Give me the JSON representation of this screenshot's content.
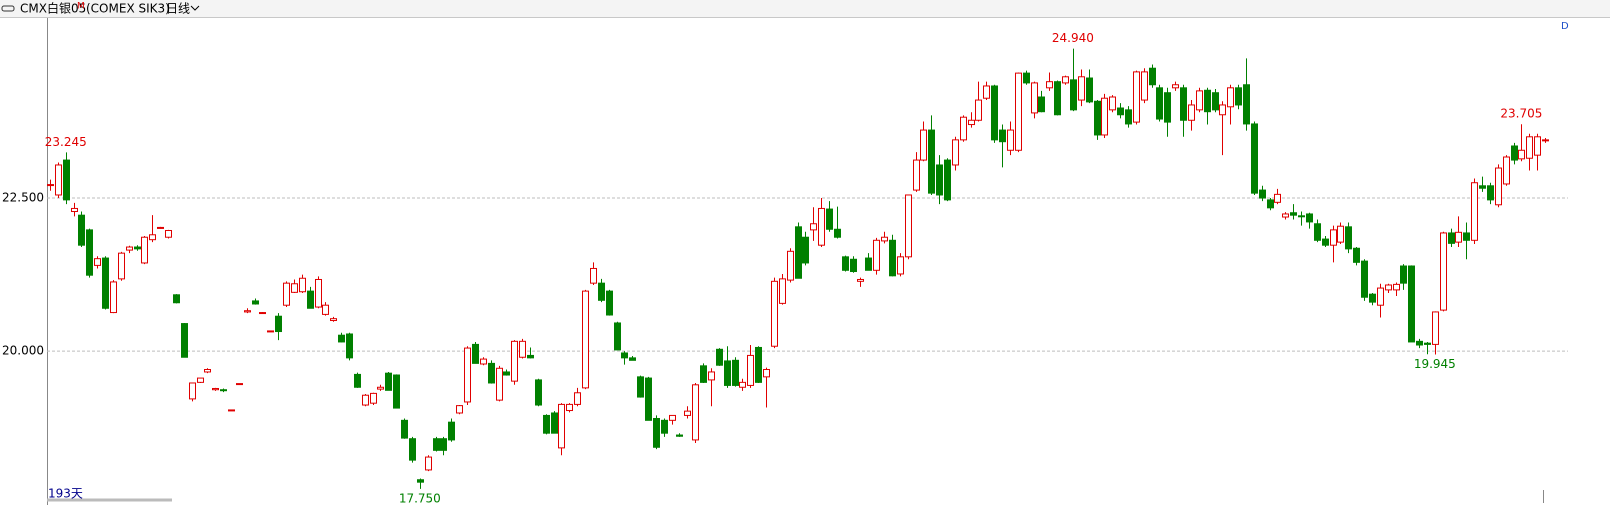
{
  "chart_data": {
    "type": "candlestick",
    "title": "CMX白银05",
    "title_mark": "M",
    "subtitle": "(COMEX SIK3)",
    "period": "日线",
    "day_count": "193天",
    "corner_label": "D",
    "ylim": [
      17.52,
      25.44
    ],
    "yticks": [
      {
        "value": 22.5,
        "label": "22.500"
      },
      {
        "value": 20,
        "label": "20.000"
      }
    ],
    "grid": true,
    "up_color": "#e00000",
    "down_color": "#008000",
    "annotations": [
      {
        "value": 23.245,
        "label": "23.245"
      },
      {
        "value": 24.94,
        "label": "24.940"
      },
      {
        "value": 23.705,
        "label": "23.705"
      },
      {
        "value": 17.75,
        "label": "17.750"
      },
      {
        "value": 19.945,
        "label": "19.945"
      }
    ],
    "ohlc": [
      [
        22.71,
        22.8,
        22.62,
        22.72
      ],
      [
        22.55,
        23.08,
        22.5,
        23.04
      ],
      [
        23.12,
        23.245,
        22.4,
        22.47
      ],
      [
        22.28,
        22.42,
        22.2,
        22.33
      ],
      [
        22.22,
        22.28,
        21.7,
        21.73
      ],
      [
        21.98,
        22.0,
        21.2,
        21.24
      ],
      [
        21.4,
        21.55,
        21.35,
        21.51
      ],
      [
        21.52,
        21.55,
        20.68,
        20.7
      ],
      [
        20.63,
        21.16,
        20.62,
        21.13
      ],
      [
        21.18,
        21.62,
        21.15,
        21.6
      ],
      [
        21.65,
        21.72,
        21.6,
        21.7
      ],
      [
        21.7,
        21.73,
        21.64,
        21.67
      ],
      [
        21.44,
        21.88,
        21.42,
        21.86
      ],
      [
        21.82,
        22.22,
        21.78,
        21.9
      ],
      [
        22.02,
        22.03,
        22.0,
        22.02
      ],
      [
        21.86,
        21.98,
        21.84,
        21.97
      ],
      [
        20.92,
        20.93,
        20.78,
        20.79
      ],
      [
        20.45,
        20.46,
        19.9,
        19.9
      ],
      [
        19.22,
        19.48,
        19.18,
        19.48
      ],
      [
        19.49,
        19.56,
        19.48,
        19.56
      ],
      [
        19.66,
        19.72,
        19.64,
        19.7
      ],
      [
        19.37,
        19.4,
        19.35,
        19.39
      ],
      [
        19.37,
        19.39,
        19.33,
        19.36
      ],
      [
        19.04,
        19.04,
        19.04,
        19.04
      ],
      [
        19.47,
        19.47,
        19.47,
        19.47
      ],
      [
        20.64,
        20.7,
        20.62,
        20.66
      ],
      [
        20.82,
        20.86,
        20.76,
        20.77
      ],
      [
        20.63,
        20.64,
        20.62,
        20.63
      ],
      [
        20.33,
        20.33,
        20.33,
        20.33
      ],
      [
        20.57,
        20.62,
        20.18,
        20.32
      ],
      [
        20.75,
        21.14,
        20.72,
        21.11
      ],
      [
        20.96,
        21.17,
        20.95,
        21.1
      ],
      [
        20.97,
        21.25,
        20.95,
        21.19
      ],
      [
        20.98,
        21.05,
        20.7,
        20.7
      ],
      [
        20.72,
        21.22,
        20.7,
        21.17
      ],
      [
        20.6,
        20.8,
        20.58,
        20.75
      ],
      [
        20.5,
        20.56,
        20.48,
        20.53
      ],
      [
        20.26,
        20.3,
        20.14,
        20.15
      ],
      [
        20.28,
        20.3,
        19.85,
        19.89
      ],
      [
        19.62,
        19.65,
        19.4,
        19.41
      ],
      [
        19.12,
        19.3,
        19.1,
        19.28
      ],
      [
        19.15,
        19.32,
        19.12,
        19.31
      ],
      [
        19.38,
        19.45,
        19.35,
        19.41
      ],
      [
        19.64,
        19.66,
        19.36,
        19.36
      ],
      [
        19.61,
        19.62,
        19.07,
        19.07
      ],
      [
        18.87,
        18.9,
        18.57,
        18.58
      ],
      [
        18.57,
        18.6,
        18.18,
        18.22
      ],
      [
        17.9,
        17.92,
        17.75,
        17.86
      ],
      [
        18.06,
        18.3,
        18.04,
        18.27
      ],
      [
        18.57,
        18.6,
        18.36,
        18.38
      ],
      [
        18.57,
        18.6,
        18.3,
        18.38
      ],
      [
        18.84,
        18.9,
        18.52,
        18.55
      ],
      [
        18.99,
        19.12,
        18.97,
        19.11
      ],
      [
        19.17,
        20.08,
        19.12,
        20.05
      ],
      [
        20.11,
        20.15,
        19.8,
        19.8
      ],
      [
        19.79,
        19.9,
        19.77,
        19.87
      ],
      [
        19.8,
        19.85,
        19.47,
        19.48
      ],
      [
        19.2,
        19.76,
        19.18,
        19.72
      ],
      [
        19.66,
        19.7,
        19.6,
        19.61
      ],
      [
        19.51,
        20.18,
        19.45,
        20.16
      ],
      [
        19.9,
        20.2,
        19.88,
        20.16
      ],
      [
        19.93,
        20.06,
        19.88,
        19.89
      ],
      [
        19.53,
        19.55,
        19.1,
        19.12
      ],
      [
        18.95,
        18.97,
        18.64,
        18.66
      ],
      [
        18.99,
        19.02,
        18.66,
        18.66
      ],
      [
        18.42,
        19.15,
        18.3,
        19.13
      ],
      [
        19.03,
        19.15,
        19.0,
        19.13
      ],
      [
        19.13,
        19.4,
        19.1,
        19.32
      ],
      [
        19.4,
        21.0,
        19.38,
        20.98
      ],
      [
        21.11,
        21.45,
        21.08,
        21.35
      ],
      [
        21.11,
        21.18,
        20.8,
        20.83
      ],
      [
        20.98,
        21.0,
        20.58,
        20.59
      ],
      [
        20.46,
        20.48,
        20.02,
        20.02
      ],
      [
        19.97,
        20.0,
        19.78,
        19.89
      ],
      [
        19.89,
        19.92,
        19.85,
        19.85
      ],
      [
        19.58,
        19.6,
        19.24,
        19.25
      ],
      [
        19.56,
        19.58,
        18.87,
        18.87
      ],
      [
        18.9,
        18.95,
        18.4,
        18.43
      ],
      [
        18.87,
        18.9,
        18.6,
        18.66
      ],
      [
        18.87,
        18.95,
        18.8,
        18.95
      ],
      [
        18.63,
        18.66,
        18.6,
        18.61
      ],
      [
        18.95,
        19.1,
        18.9,
        19.02
      ],
      [
        18.55,
        19.48,
        18.5,
        19.45
      ],
      [
        19.76,
        19.8,
        19.48,
        19.49
      ],
      [
        19.53,
        19.72,
        19.1,
        19.66
      ],
      [
        20.03,
        20.05,
        19.76,
        19.77
      ],
      [
        19.84,
        20.08,
        19.4,
        19.44
      ],
      [
        19.85,
        19.9,
        19.42,
        19.44
      ],
      [
        19.41,
        19.55,
        19.35,
        19.49
      ],
      [
        19.44,
        20.1,
        19.4,
        19.93
      ],
      [
        20.06,
        20.08,
        19.48,
        19.49
      ],
      [
        19.58,
        19.73,
        19.08,
        19.7
      ],
      [
        20.08,
        21.2,
        20.05,
        21.14
      ],
      [
        20.78,
        21.26,
        20.76,
        21.18
      ],
      [
        21.16,
        21.68,
        21.12,
        21.63
      ],
      [
        22.03,
        22.1,
        21.2,
        21.19
      ],
      [
        21.86,
        21.95,
        21.4,
        21.44
      ],
      [
        21.98,
        22.35,
        21.8,
        22.08
      ],
      [
        21.73,
        22.5,
        21.7,
        22.33
      ],
      [
        22.32,
        22.45,
        21.95,
        21.99
      ],
      [
        21.99,
        22.36,
        21.84,
        21.86
      ],
      [
        21.54,
        21.56,
        21.3,
        21.32
      ],
      [
        21.5,
        21.55,
        21.28,
        21.3
      ],
      [
        21.14,
        21.2,
        21.05,
        21.17
      ],
      [
        21.52,
        21.6,
        21.32,
        21.32
      ],
      [
        21.32,
        21.85,
        21.25,
        21.81
      ],
      [
        21.8,
        21.95,
        21.76,
        21.86
      ],
      [
        21.81,
        21.9,
        21.22,
        21.23
      ],
      [
        21.26,
        21.6,
        21.22,
        21.54
      ],
      [
        21.54,
        22.55,
        21.5,
        22.55
      ],
      [
        22.63,
        23.25,
        22.6,
        23.12
      ],
      [
        23.12,
        23.75,
        23.1,
        23.61
      ],
      [
        23.61,
        23.85,
        22.55,
        22.58
      ],
      [
        23.04,
        23.2,
        22.4,
        22.55
      ],
      [
        23.12,
        23.15,
        22.45,
        22.47
      ],
      [
        23.04,
        23.5,
        22.95,
        23.45
      ],
      [
        23.45,
        23.85,
        23.42,
        23.82
      ],
      [
        23.7,
        23.9,
        23.65,
        23.77
      ],
      [
        23.77,
        24.4,
        23.75,
        24.1
      ],
      [
        24.13,
        24.4,
        24.1,
        24.33
      ],
      [
        24.33,
        24.35,
        23.4,
        23.45
      ],
      [
        23.61,
        23.7,
        23.0,
        23.42
      ],
      [
        23.28,
        23.75,
        23.2,
        23.61
      ],
      [
        23.28,
        24.55,
        23.25,
        24.54
      ],
      [
        24.54,
        24.58,
        24.35,
        24.38
      ],
      [
        23.89,
        24.4,
        23.8,
        24.38
      ],
      [
        24.15,
        24.25,
        23.9,
        23.91
      ],
      [
        24.3,
        24.55,
        24.25,
        24.4
      ],
      [
        24.4,
        24.42,
        23.85,
        23.86
      ],
      [
        24.38,
        24.5,
        24.35,
        24.48
      ],
      [
        24.43,
        24.94,
        23.92,
        23.94
      ],
      [
        24.1,
        24.6,
        24.0,
        24.48
      ],
      [
        24.46,
        24.6,
        24.05,
        24.07
      ],
      [
        24.08,
        24.1,
        23.45,
        23.53
      ],
      [
        23.53,
        24.2,
        23.48,
        24.13
      ],
      [
        23.94,
        24.18,
        23.9,
        24.15
      ],
      [
        23.97,
        24.05,
        23.8,
        23.86
      ],
      [
        23.94,
        24.0,
        23.65,
        23.71
      ],
      [
        23.74,
        24.58,
        23.7,
        24.56
      ],
      [
        24.1,
        24.62,
        24.05,
        24.56
      ],
      [
        24.62,
        24.68,
        24.3,
        24.35
      ],
      [
        24.3,
        24.35,
        23.75,
        23.79
      ],
      [
        24.22,
        24.3,
        23.5,
        23.74
      ],
      [
        24.3,
        24.4,
        24.25,
        24.35
      ],
      [
        24.3,
        24.35,
        23.5,
        23.77
      ],
      [
        23.77,
        24.1,
        23.6,
        24.02
      ],
      [
        23.94,
        24.3,
        23.9,
        24.25
      ],
      [
        24.26,
        24.3,
        23.7,
        23.91
      ],
      [
        24.22,
        24.28,
        23.9,
        23.94
      ],
      [
        23.86,
        24.08,
        23.2,
        24.02
      ],
      [
        23.99,
        24.35,
        23.7,
        24.3
      ],
      [
        24.3,
        24.35,
        23.95,
        24.02
      ],
      [
        24.35,
        24.78,
        23.6,
        23.71
      ],
      [
        23.71,
        23.75,
        22.55,
        22.58
      ],
      [
        22.63,
        22.7,
        22.45,
        22.5
      ],
      [
        22.47,
        22.5,
        22.3,
        22.34
      ],
      [
        22.43,
        22.65,
        22.4,
        22.56
      ],
      [
        22.19,
        22.27,
        22.15,
        22.24
      ],
      [
        22.26,
        22.4,
        22.15,
        22.22
      ],
      [
        22.21,
        22.28,
        22.05,
        22.2
      ],
      [
        22.24,
        22.26,
        22.0,
        22.11
      ],
      [
        22.08,
        22.15,
        21.78,
        21.81
      ],
      [
        21.83,
        21.88,
        21.7,
        21.73
      ],
      [
        21.73,
        22.05,
        21.45,
        21.98
      ],
      [
        21.78,
        22.1,
        21.75,
        22.04
      ],
      [
        22.03,
        22.1,
        21.6,
        21.67
      ],
      [
        21.68,
        21.7,
        21.4,
        21.45
      ],
      [
        21.47,
        21.5,
        20.82,
        20.88
      ],
      [
        20.93,
        20.95,
        20.75,
        20.8
      ],
      [
        20.75,
        21.1,
        20.55,
        21.03
      ],
      [
        21.0,
        21.1,
        20.95,
        21.08
      ],
      [
        21.0,
        21.12,
        20.9,
        21.09
      ],
      [
        21.39,
        21.42,
        21.0,
        21.11
      ],
      [
        21.39,
        21.4,
        20.2,
        20.15
      ],
      [
        20.16,
        20.2,
        20.05,
        20.1
      ],
      [
        20.13,
        20.15,
        19.95,
        20.11
      ],
      [
        20.11,
        20.65,
        19.945,
        20.64
      ],
      [
        20.67,
        21.95,
        20.65,
        21.93
      ],
      [
        21.93,
        22.0,
        21.7,
        21.76
      ],
      [
        21.78,
        22.2,
        21.7,
        21.94
      ],
      [
        21.93,
        22.1,
        21.5,
        21.81
      ],
      [
        21.81,
        22.82,
        21.75,
        22.75
      ],
      [
        22.7,
        22.85,
        22.6,
        22.66
      ],
      [
        22.7,
        22.75,
        22.4,
        22.47
      ],
      [
        22.39,
        23.05,
        22.35,
        22.99
      ],
      [
        22.73,
        23.2,
        22.7,
        23.17
      ],
      [
        23.35,
        23.4,
        23.05,
        23.12
      ],
      [
        23.14,
        23.705,
        23.1,
        23.28
      ],
      [
        23.15,
        23.55,
        22.95,
        23.5
      ],
      [
        23.2,
        23.55,
        22.95,
        23.5
      ],
      [
        23.45,
        23.48,
        23.4,
        23.45
      ]
    ]
  }
}
